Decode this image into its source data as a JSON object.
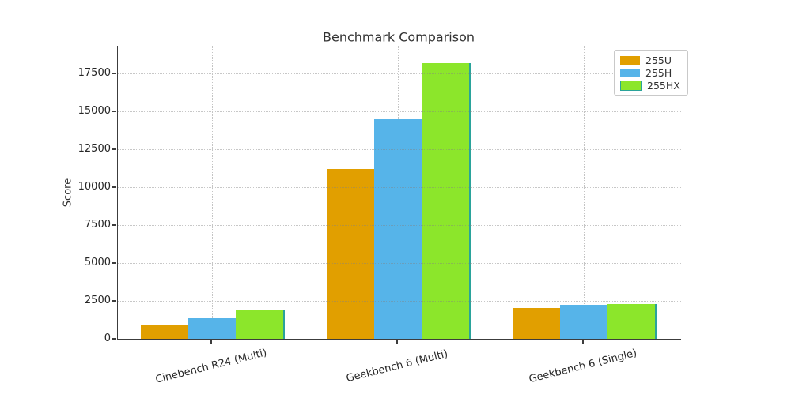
{
  "chart_data": {
    "type": "bar",
    "title": "Benchmark Comparison",
    "ylabel": "Score",
    "xlabel": "",
    "categories": [
      "Cinebench R24 (Multi)",
      "Geekbench 6 (Multi)",
      "Geekbench 6 (Single)"
    ],
    "series": [
      {
        "name": "255U",
        "color": "#E19F00",
        "values": [
          950,
          11200,
          2050
        ]
      },
      {
        "name": "255H",
        "color": "#56B4E9",
        "values": [
          1350,
          14500,
          2250
        ]
      },
      {
        "name": "255HX",
        "color": "#8CE62B",
        "edge_color": "#2AA39B",
        "values": [
          1900,
          18200,
          2300
        ]
      }
    ],
    "yticks": [
      0,
      2500,
      5000,
      7500,
      10000,
      12500,
      15000,
      17500
    ],
    "ylim": [
      0,
      19322
    ],
    "grid": "dotted, both axes",
    "legend_position": "upper right"
  }
}
